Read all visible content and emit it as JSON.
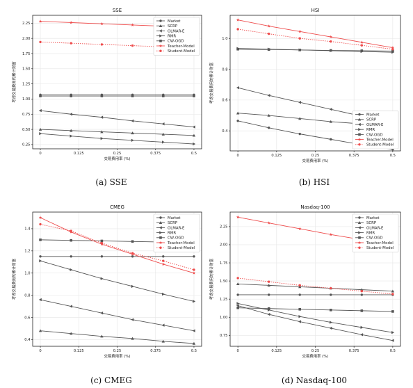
{
  "figure": {
    "captions": [
      "(a) SSE",
      "(b) HSI",
      "(c) CMEG",
      "(d) Nasdaq-100"
    ]
  },
  "chart_data": [
    {
      "type": "line",
      "title": "SSE",
      "xlabel": "交易费用率 (%)",
      "ylabel": "考虑交易费用的累计财富",
      "x": [
        0,
        0.1,
        0.2,
        0.3,
        0.4,
        0.5
      ],
      "xticks": [
        0,
        0.125,
        0.25,
        0.375,
        0.5
      ],
      "xtick_labels": [
        "0",
        "0.125",
        "0.25",
        "0.375",
        "0.5"
      ],
      "xlim": [
        -0.025,
        0.525
      ],
      "ylim": [
        0.18,
        2.38
      ],
      "yticks": [
        0.25,
        0.5,
        0.75,
        1.0,
        1.25,
        1.5,
        1.75,
        2.0,
        2.25
      ],
      "ytick_labels": [
        "0.25",
        "0.50",
        "0.75",
        "1.00",
        "1.25",
        "1.50",
        "1.75",
        "2.00",
        "2.25"
      ],
      "legend": "top-right",
      "grid": true,
      "series": [
        {
          "name": "Market",
          "values": [
            1.07,
            1.07,
            1.07,
            1.07,
            1.07,
            1.07
          ]
        },
        {
          "name": "SCRP",
          "values": [
            0.5,
            0.48,
            0.46,
            0.44,
            0.42,
            0.4
          ]
        },
        {
          "name": "OLMAR-E",
          "values": [
            0.81,
            0.75,
            0.7,
            0.64,
            0.59,
            0.54
          ]
        },
        {
          "name": "RMR",
          "values": [
            0.43,
            0.39,
            0.35,
            0.32,
            0.29,
            0.26
          ]
        },
        {
          "name": "CW-OGD",
          "values": [
            1.05,
            1.05,
            1.05,
            1.05,
            1.05,
            1.05
          ]
        },
        {
          "name": "Teacher-Model",
          "values": [
            2.28,
            2.26,
            2.24,
            2.22,
            2.2,
            2.18
          ]
        },
        {
          "name": "Student-Model",
          "values": [
            1.94,
            1.92,
            1.9,
            1.88,
            1.86,
            1.84
          ]
        }
      ]
    },
    {
      "type": "line",
      "title": "HSI",
      "xlabel": "交易费用率 (%)",
      "ylabel": "考虑交易费用的累计财富",
      "x": [
        0,
        0.1,
        0.2,
        0.3,
        0.4,
        0.5
      ],
      "xticks": [
        0,
        0.125,
        0.25,
        0.375,
        0.5
      ],
      "xtick_labels": [
        "0",
        "0.125",
        "0.25",
        "0.375",
        "0.5"
      ],
      "xlim": [
        -0.025,
        0.525
      ],
      "ylim": [
        0.27,
        1.15
      ],
      "yticks": [
        0.4,
        0.6,
        0.8,
        1.0
      ],
      "ytick_labels": [
        "0.4",
        "0.6",
        "0.8",
        "1.0"
      ],
      "legend": "lower-right",
      "grid": true,
      "series": [
        {
          "name": "Market",
          "values": [
            0.465,
            0.42,
            0.38,
            0.345,
            0.31,
            0.28
          ]
        },
        {
          "name": "SCRP",
          "values": [
            0.515,
            0.5,
            0.48,
            0.46,
            0.445,
            0.425
          ]
        },
        {
          "name": "OLMAR-E",
          "values": [
            0.68,
            0.63,
            0.585,
            0.54,
            0.495,
            0.455
          ]
        },
        {
          "name": "RMR",
          "values": [
            0.935,
            0.93,
            0.925,
            0.92,
            0.915,
            0.91
          ]
        },
        {
          "name": "CW-OGD",
          "values": [
            0.93,
            0.928,
            0.925,
            0.922,
            0.92,
            0.918
          ]
        },
        {
          "name": "Teacher-Model",
          "values": [
            1.12,
            1.08,
            1.045,
            1.01,
            0.975,
            0.94
          ]
        },
        {
          "name": "Student-Model",
          "values": [
            1.06,
            1.03,
            1.0,
            0.98,
            0.955,
            0.93
          ]
        }
      ]
    },
    {
      "type": "line",
      "title": "CMEG",
      "xlabel": "交易费用率 (%)",
      "ylabel": "考虑交易费用的累计财富",
      "x": [
        0,
        0.1,
        0.2,
        0.3,
        0.4,
        0.5
      ],
      "xticks": [
        0,
        0.125,
        0.25,
        0.375,
        0.5
      ],
      "xtick_labels": [
        "0",
        "0.125",
        "0.25",
        "0.375",
        "0.5"
      ],
      "xlim": [
        -0.025,
        0.525
      ],
      "ylim": [
        0.34,
        1.55
      ],
      "yticks": [
        0.4,
        0.6,
        0.8,
        1.0,
        1.2,
        1.4
      ],
      "ytick_labels": [
        "0.4",
        "0.6",
        "0.8",
        "1.0",
        "1.2",
        "1.4"
      ],
      "legend": "top-right",
      "grid": true,
      "series": [
        {
          "name": "Market",
          "values": [
            1.15,
            1.15,
            1.15,
            1.15,
            1.15,
            1.15
          ]
        },
        {
          "name": "SCRP",
          "values": [
            0.48,
            0.455,
            0.43,
            0.41,
            0.385,
            0.365
          ]
        },
        {
          "name": "OLMAR-E",
          "values": [
            0.76,
            0.7,
            0.64,
            0.58,
            0.53,
            0.48
          ]
        },
        {
          "name": "RMR",
          "values": [
            1.11,
            1.03,
            0.95,
            0.88,
            0.81,
            0.745
          ]
        },
        {
          "name": "CW-OGD",
          "values": [
            1.3,
            1.295,
            1.29,
            1.285,
            1.28,
            1.275
          ]
        },
        {
          "name": "Teacher-Model",
          "values": [
            1.5,
            1.37,
            1.26,
            1.17,
            1.08,
            1.0
          ]
        },
        {
          "name": "Student-Model",
          "values": [
            1.44,
            1.38,
            1.27,
            1.18,
            1.11,
            1.03
          ]
        }
      ]
    },
    {
      "type": "line",
      "title": "Nasdaq-100",
      "xlabel": "交易费用率 (%)",
      "ylabel": "考虑交易费用的累计财富",
      "x": [
        0,
        0.1,
        0.2,
        0.3,
        0.4,
        0.5
      ],
      "xticks": [
        0,
        0.125,
        0.25,
        0.375,
        0.5
      ],
      "xtick_labels": [
        "0",
        "0.125",
        "0.25",
        "0.375",
        "0.5"
      ],
      "xlim": [
        -0.025,
        0.525
      ],
      "ylim": [
        0.6,
        2.45
      ],
      "yticks": [
        0.75,
        1.0,
        1.25,
        1.5,
        1.75,
        2.0,
        2.25
      ],
      "ytick_labels": [
        "0.75",
        "1.00",
        "1.25",
        "1.50",
        "1.75",
        "2.00",
        "2.25"
      ],
      "legend": "top-right",
      "grid": true,
      "series": [
        {
          "name": "Market",
          "values": [
            1.31,
            1.31,
            1.31,
            1.31,
            1.31,
            1.31
          ]
        },
        {
          "name": "SCRP",
          "values": [
            1.46,
            1.44,
            1.42,
            1.4,
            1.38,
            1.36
          ]
        },
        {
          "name": "OLMAR-E",
          "values": [
            1.16,
            1.04,
            0.94,
            0.85,
            0.76,
            0.68
          ]
        },
        {
          "name": "RMR",
          "values": [
            1.19,
            1.1,
            1.01,
            0.93,
            0.86,
            0.79
          ]
        },
        {
          "name": "CW-OGD",
          "values": [
            1.13,
            1.12,
            1.11,
            1.1,
            1.09,
            1.08
          ]
        },
        {
          "name": "Teacher-Model",
          "values": [
            2.38,
            2.3,
            2.22,
            2.14,
            2.07,
            1.99
          ]
        },
        {
          "name": "Student-Model",
          "values": [
            1.54,
            1.49,
            1.44,
            1.4,
            1.36,
            1.32
          ]
        }
      ]
    }
  ],
  "styles": {
    "Market": {
      "color": "#555555",
      "marker": "circle",
      "dash": ""
    },
    "SCRP": {
      "color": "#555555",
      "marker": "triangle-up",
      "dash": ""
    },
    "OLMAR-E": {
      "color": "#555555",
      "marker": "triangle-left",
      "dash": ""
    },
    "RMR": {
      "color": "#555555",
      "marker": "triangle-right",
      "dash": ""
    },
    "CW-OGD": {
      "color": "#555555",
      "marker": "square",
      "dash": ""
    },
    "Teacher-Model": {
      "color": "#ee4b4b",
      "marker": "star",
      "dash": ""
    },
    "Student-Model": {
      "color": "#ee4b4b",
      "marker": "circle",
      "dash": "1.5,1.5"
    }
  }
}
